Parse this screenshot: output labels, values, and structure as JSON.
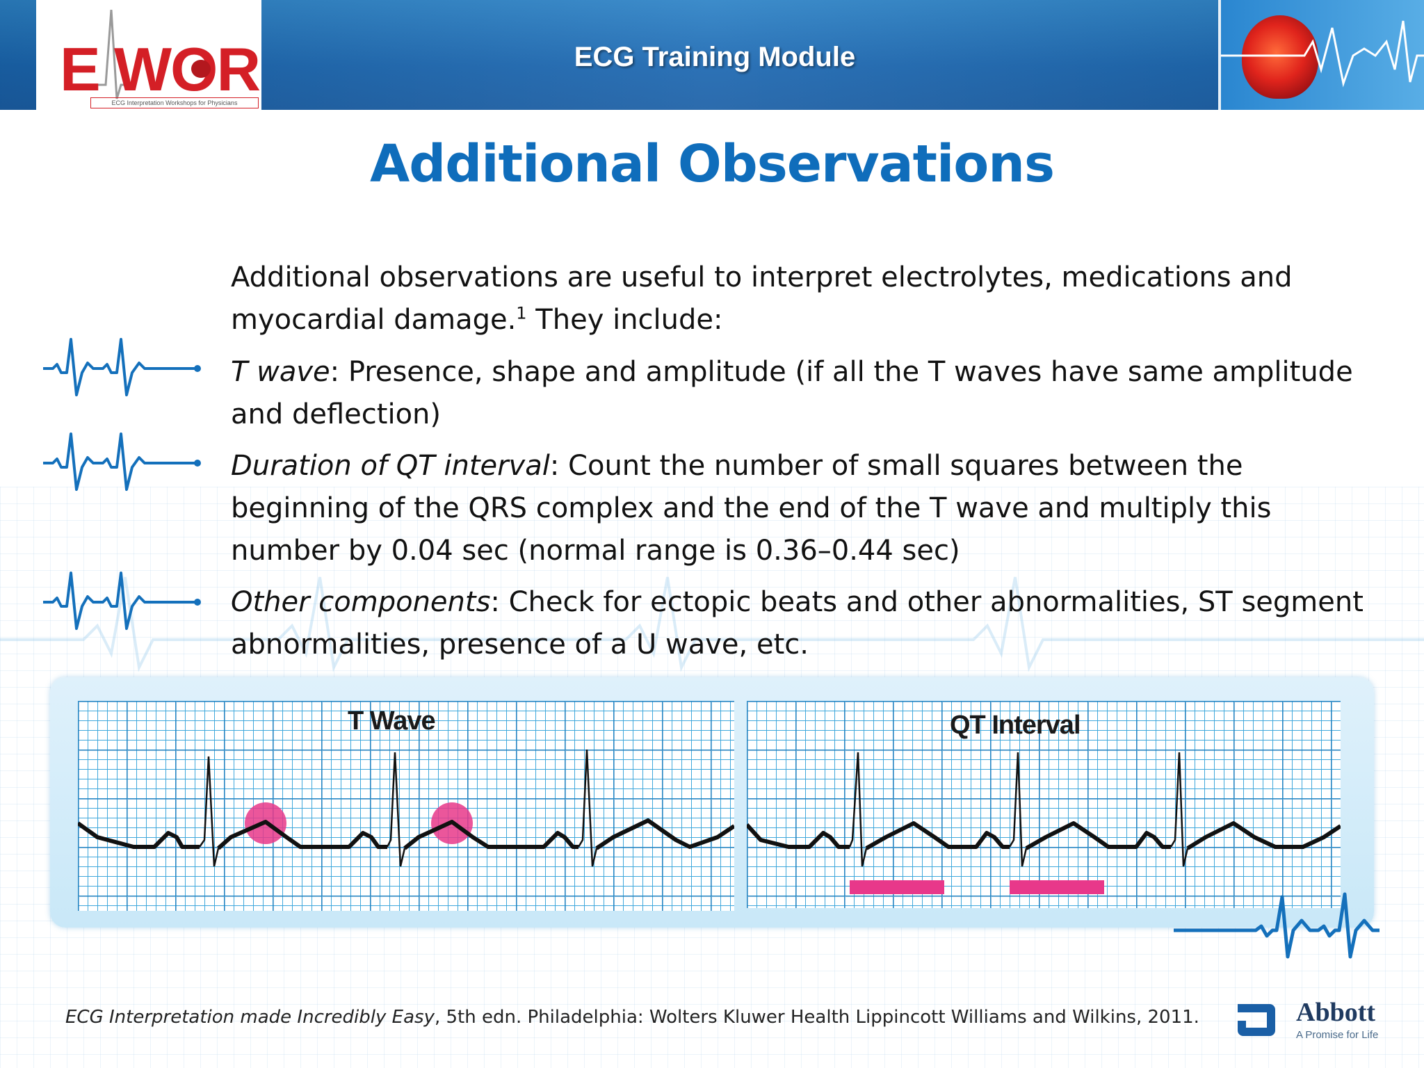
{
  "header": {
    "logo_letters_e": "E",
    "logo_letters_rest": "WOR",
    "logo_subtitle": "ECG Interpretation Workshops for Physicians",
    "title": "ECG Training Module"
  },
  "slide": {
    "title": "Additional Observations",
    "intro_main": "Additional observations are useful to interpret electrolytes, medications and myocardial damage.",
    "intro_sup": "1",
    "intro_tail": " They include:",
    "bullets": [
      {
        "term": "T wave",
        "text": ": Presence, shape and amplitude (if all the T waves have same amplitude and deflection)"
      },
      {
        "term": "Duration of QT interval",
        "text": ": Count the number of small squares between the beginning of the QRS complex and the end of the T wave and multiply this number by 0.04 sec (normal range is 0.36–0.44 sec)"
      },
      {
        "term": "Other components",
        "text": ": Check for ectopic beats and other abnormalities, ST segment abnormalities, presence of a U wave, etc."
      }
    ]
  },
  "strips": {
    "left_label": "T Wave",
    "right_label": "QT Interval"
  },
  "footer": {
    "reference_title": "ECG Interpretation made Incredibly Easy",
    "reference_rest": ", 5th edn. Philadelphia: Wolters Kluwer Health Lippincott Williams and Wilkins, 2011.",
    "brand_name": "Abbott",
    "brand_tagline": "A Promise for Life"
  },
  "colors": {
    "header_blue": "#1a66b0",
    "title_blue": "#0f6dbb",
    "logo_red": "#d41f26",
    "highlight_pink": "#e8388a",
    "grid_blue": "#1e9ad6"
  }
}
